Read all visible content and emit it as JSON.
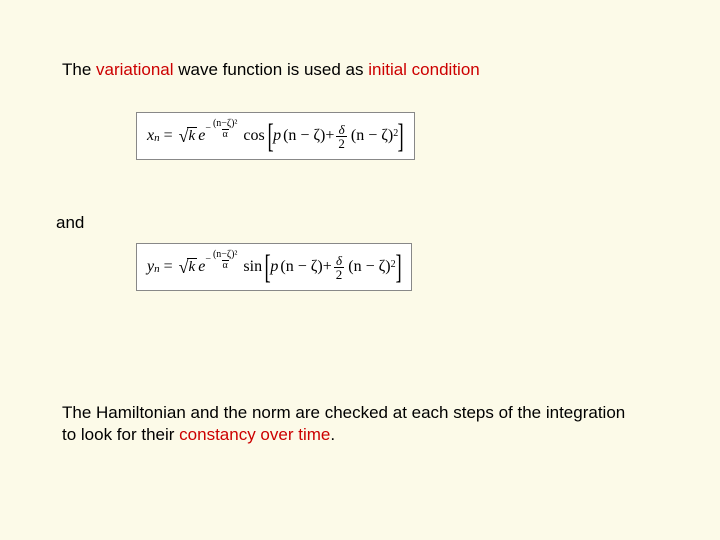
{
  "colors": {
    "background": "#fcfae8",
    "text": "#000000",
    "accent_red": "#cc0000",
    "eq_box_bg": "#ffffff",
    "eq_box_border": "#888888"
  },
  "typography": {
    "body_font": "Arial",
    "body_size_pt": 13,
    "math_font": "Times New Roman",
    "math_size_pt": 12
  },
  "line1": {
    "pre": "The ",
    "red1": "variational",
    "mid1": " wave function",
    "mid2": " is used as ",
    "red2": "initial condition"
  },
  "eq1": {
    "lhs_var": "x",
    "lhs_sub": "n",
    "sqrt_body": "k",
    "exp_e": "e",
    "exp_frac_num": "(n−ζ)²",
    "exp_frac_den": "α",
    "exp_sign": "−",
    "trig": "cos",
    "inner_term1_a": "p",
    "inner_term1_b": "(n − ζ)",
    "plus": " + ",
    "frac_num": "δ",
    "frac_den": "2",
    "inner_term2": "(n − ζ)",
    "inner_term2_sup": "2"
  },
  "and": "and",
  "eq2": {
    "lhs_var": "y",
    "lhs_sub": "n",
    "sqrt_body": "k",
    "exp_e": "e",
    "exp_frac_num": "(n−ζ)²",
    "exp_frac_den": "α",
    "exp_sign": "−",
    "trig": "sin",
    "inner_term1_a": "p",
    "inner_term1_b": "(n − ζ)",
    "plus": " + ",
    "frac_num": "δ",
    "frac_den": "2",
    "inner_term2": "(n − ζ)",
    "inner_term2_sup": "2"
  },
  "para": {
    "pre": "The Hamiltonian and the norm are checked at each steps of the integration to look for their ",
    "red": "constancy over time",
    "post": "."
  }
}
